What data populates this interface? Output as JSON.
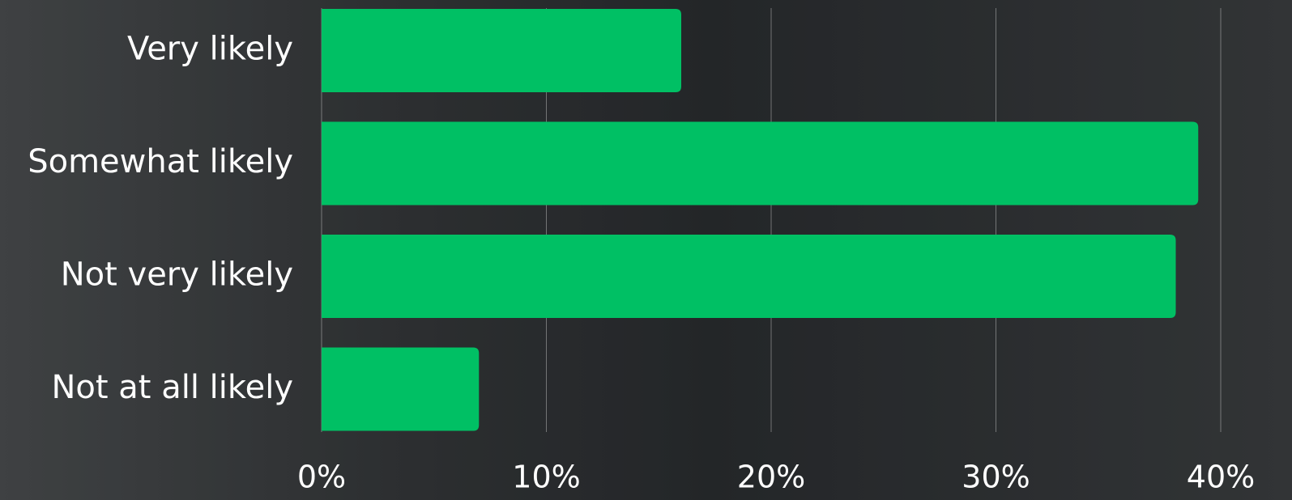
{
  "chart_data": {
    "type": "bar",
    "orientation": "horizontal",
    "categories": [
      "Very likely",
      "Somewhat likely",
      "Not very likely",
      "Not at all likely"
    ],
    "values": [
      16,
      39,
      38,
      7
    ],
    "color": "#00c064",
    "xlim": [
      0,
      40
    ],
    "xticks": [
      {
        "value": 0,
        "label": "0%"
      },
      {
        "value": 10,
        "label": "10%"
      },
      {
        "value": 20,
        "label": "20%"
      },
      {
        "value": 30,
        "label": "30%"
      },
      {
        "value": 40,
        "label": "40%"
      }
    ],
    "grid": true
  }
}
